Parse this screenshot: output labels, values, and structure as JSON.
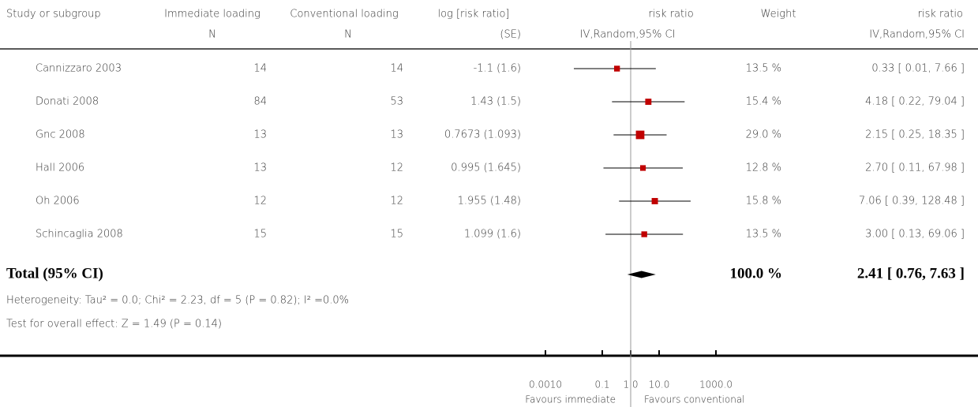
{
  "chart_data": {
    "type": "forest",
    "x_scale": "log",
    "columns": {
      "study": "Study or subgroup",
      "immediate": [
        "Immediate loading",
        "N"
      ],
      "conventional": [
        "Conventional loading",
        "N"
      ],
      "log_rr": [
        "log [risk ratio]",
        "(SE)"
      ],
      "plot": [
        "risk ratio",
        "IV,Random,95% CI"
      ],
      "weight": "Weight",
      "rr": [
        "risk ratio",
        "IV,Random,95% CI"
      ]
    },
    "studies": [
      {
        "name": "Cannizzaro 2003",
        "immediate_n": 14,
        "conventional_n": 14,
        "log_rr_se": "-1.1 (1.6)",
        "weight": 13.5,
        "weight_label": "13.5 %",
        "rr": 0.33,
        "lower": 0.01,
        "upper": 7.66,
        "rr_label": "0.33 [ 0.01, 7.66 ]"
      },
      {
        "name": "Donati 2008",
        "immediate_n": 84,
        "conventional_n": 53,
        "log_rr_se": "1.43 (1.5)",
        "weight": 15.4,
        "weight_label": "15.4 %",
        "rr": 4.18,
        "lower": 0.22,
        "upper": 79.04,
        "rr_label": "4.18 [ 0.22, 79.04 ]"
      },
      {
        "name": "Gnc 2008",
        "immediate_n": 13,
        "conventional_n": 13,
        "log_rr_se": "0.7673 (1.093)",
        "weight": 29.0,
        "weight_label": "29.0 %",
        "rr": 2.15,
        "lower": 0.25,
        "upper": 18.35,
        "rr_label": "2.15 [ 0.25, 18.35 ]"
      },
      {
        "name": "Hall 2006",
        "immediate_n": 13,
        "conventional_n": 12,
        "log_rr_se": "0.995 (1.645)",
        "weight": 12.8,
        "weight_label": "12.8 %",
        "rr": 2.7,
        "lower": 0.11,
        "upper": 67.98,
        "rr_label": "2.70 [ 0.11, 67.98 ]"
      },
      {
        "name": "Oh 2006",
        "immediate_n": 12,
        "conventional_n": 12,
        "log_rr_se": "1.955 (1.48)",
        "weight": 15.8,
        "weight_label": "15.8 %",
        "rr": 7.06,
        "lower": 0.39,
        "upper": 128.48,
        "rr_label": "7.06 [ 0.39, 128.48 ]"
      },
      {
        "name": "Schincaglia 2008",
        "immediate_n": 15,
        "conventional_n": 15,
        "log_rr_se": "1.099 (1.6)",
        "weight": 13.5,
        "weight_label": "13.5 %",
        "rr": 3.0,
        "lower": 0.13,
        "upper": 69.06,
        "rr_label": "3.00 [ 0.13, 69.06 ]"
      }
    ],
    "total": {
      "name": "Total (95% CI)",
      "weight": 100.0,
      "weight_label": "100.0 %",
      "rr": 2.41,
      "lower": 0.76,
      "upper": 7.63,
      "rr_label": "2.41 [ 0.76, 7.63 ]"
    },
    "heterogeneity": "Heterogeneity: Tau² = 0.0; Chi² = 2.23, df = 5 (P = 0.82); I² =0.0%",
    "overall_effect": "Test for overall effect: Z = 1.49 (P = 0.14)",
    "xlim": [
      0.001,
      1000
    ],
    "xticks": [
      {
        "value": 0.001,
        "label": "0.0010"
      },
      0.1,
      {
        "value": 1,
        "label": "1.0"
      },
      {
        "value": 10,
        "label": "10.0"
      },
      {
        "value": 1000,
        "label": "1000.0"
      }
    ],
    "favours_left": "Favours immediate",
    "favours_right": "Favours conventional",
    "marker_color": "#c00000"
  }
}
